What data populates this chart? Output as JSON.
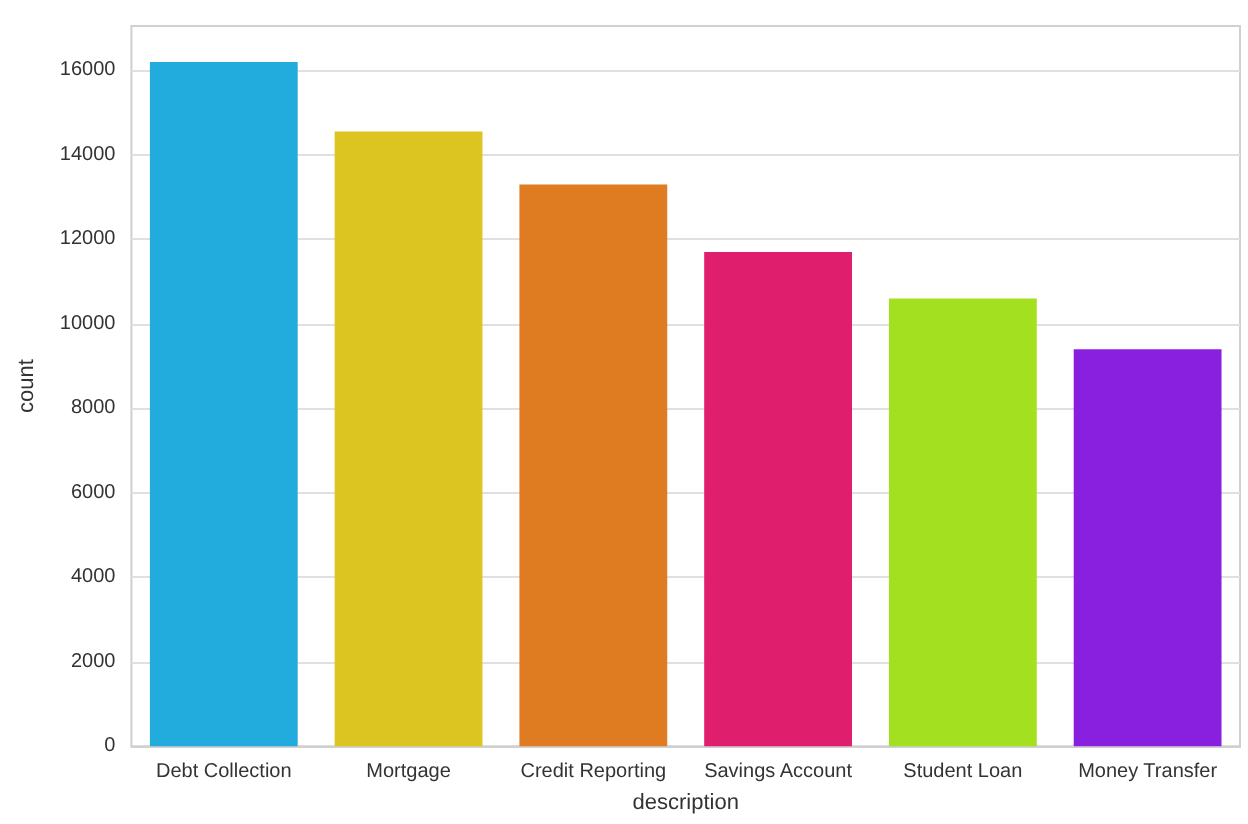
{
  "chart_data": {
    "type": "bar",
    "xlabel": "description",
    "ylabel": "count",
    "categories": [
      "Debt Collection",
      "Mortgage",
      "Credit Reporting",
      "Savings Account",
      "Student Loan",
      "Money Transfer"
    ],
    "values": [
      16200,
      14550,
      13300,
      11700,
      10600,
      9400
    ],
    "colors": [
      "#22abdd",
      "#dcc520",
      "#df7b20",
      "#df1e6e",
      "#a3e020",
      "#8a20df"
    ],
    "ylim": [
      0,
      17050
    ],
    "yticks": [
      0,
      2000,
      4000,
      6000,
      8000,
      10000,
      12000,
      14000,
      16000
    ],
    "grid": "y"
  }
}
